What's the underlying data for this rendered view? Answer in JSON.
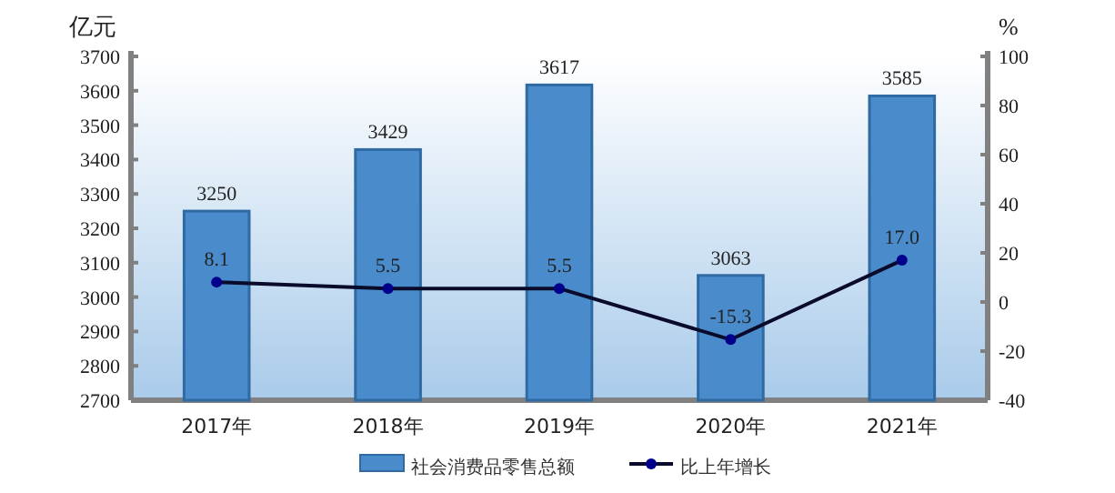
{
  "chart_data": {
    "type": "bar",
    "categories": [
      "2017年",
      "2018年",
      "2019年",
      "2020年",
      "2021年"
    ],
    "ylabel": "亿元",
    "y2label": "%",
    "ylim": [
      2700,
      3700
    ],
    "yticks": [
      2700,
      2800,
      2900,
      3000,
      3100,
      3200,
      3300,
      3400,
      3500,
      3600,
      3700
    ],
    "y2lim": [
      -40,
      100
    ],
    "y2ticks": [
      -40,
      -20,
      0,
      20,
      40,
      60,
      80,
      100
    ],
    "series": [
      {
        "name": "社会消费品零售总额",
        "color": "#4a8bcb",
        "values": [
          3250,
          3429,
          3617,
          3063,
          3585
        ]
      },
      {
        "name": "比上年增长",
        "type": "line",
        "axis": "y2",
        "color": "#0a0a2a",
        "marker": "circle",
        "values": [
          8.1,
          5.5,
          5.5,
          -15.3,
          17.0
        ],
        "value_labels": [
          "8.1",
          "5.5",
          "5.5",
          "-15.3",
          "17.0"
        ]
      }
    ],
    "data_labels": true,
    "grid": false,
    "legend": "bottom"
  }
}
